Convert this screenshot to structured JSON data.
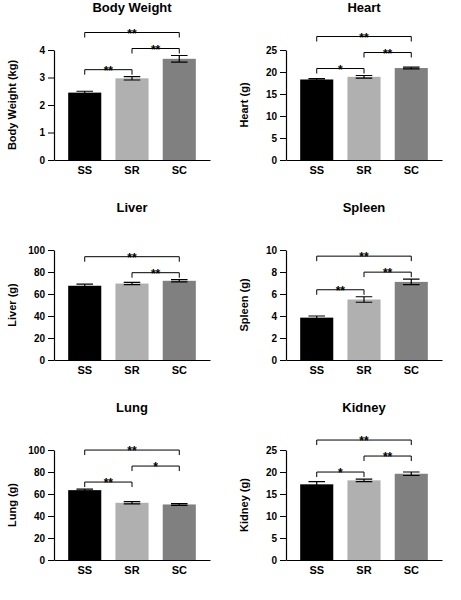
{
  "chart_data": [
    {
      "type": "bar",
      "title": "Body Weight",
      "y_label": "Body Weight (kg)",
      "categories": [
        "SS",
        "SR",
        "SC"
      ],
      "values": [
        2.45,
        2.97,
        3.68
      ],
      "errors": [
        0.05,
        0.06,
        0.12
      ],
      "colors": [
        "#000000",
        "#b0b0b0",
        "#808080"
      ],
      "ylim": [
        0,
        4
      ],
      "yticks": [
        0,
        1,
        2,
        3,
        4
      ],
      "annotations": [
        {
          "between": [
            "SS",
            "SR"
          ],
          "label": "**"
        },
        {
          "between": [
            "SR",
            "SC"
          ],
          "label": "**"
        },
        {
          "between": [
            "SS",
            "SC"
          ],
          "label": "**"
        }
      ]
    },
    {
      "type": "bar",
      "title": "Heart",
      "y_label": "Heart (g)",
      "categories": [
        "SS",
        "SR",
        "SC"
      ],
      "values": [
        18.3,
        18.9,
        20.9
      ],
      "errors": [
        0.2,
        0.3,
        0.2
      ],
      "colors": [
        "#000000",
        "#b0b0b0",
        "#808080"
      ],
      "ylim": [
        0,
        25
      ],
      "yticks": [
        0,
        5,
        10,
        15,
        20,
        25
      ],
      "annotations": [
        {
          "between": [
            "SS",
            "SR"
          ],
          "label": "*"
        },
        {
          "between": [
            "SR",
            "SC"
          ],
          "label": "**"
        },
        {
          "between": [
            "SS",
            "SC"
          ],
          "label": "**"
        }
      ]
    },
    {
      "type": "bar",
      "title": "Liver",
      "y_label": "Liver (g)",
      "categories": [
        "SS",
        "SR",
        "SC"
      ],
      "values": [
        67.5,
        69.5,
        72
      ],
      "errors": [
        1.5,
        1,
        1
      ],
      "colors": [
        "#000000",
        "#b0b0b0",
        "#808080"
      ],
      "ylim": [
        0,
        100
      ],
      "yticks": [
        0,
        20,
        40,
        60,
        80,
        100
      ],
      "annotations": [
        {
          "between": [
            "SR",
            "SC"
          ],
          "label": "**"
        },
        {
          "between": [
            "SS",
            "SC"
          ],
          "label": "**"
        }
      ]
    },
    {
      "type": "bar",
      "title": "Spleen",
      "y_label": "Spleen (g)",
      "categories": [
        "SS",
        "SR",
        "SC"
      ],
      "values": [
        3.85,
        5.5,
        7.1
      ],
      "errors": [
        0.15,
        0.25,
        0.25
      ],
      "colors": [
        "#000000",
        "#b0b0b0",
        "#808080"
      ],
      "ylim": [
        0,
        10
      ],
      "yticks": [
        0,
        2,
        4,
        6,
        8,
        10
      ],
      "annotations": [
        {
          "between": [
            "SS",
            "SR"
          ],
          "label": "**"
        },
        {
          "between": [
            "SR",
            "SC"
          ],
          "label": "**"
        },
        {
          "between": [
            "SS",
            "SC"
          ],
          "label": "**"
        }
      ]
    },
    {
      "type": "bar",
      "title": "Lung",
      "y_label": "Lung (g)",
      "categories": [
        "SS",
        "SR",
        "SC"
      ],
      "values": [
        63.5,
        52,
        50.5
      ],
      "errors": [
        1,
        1,
        0.8
      ],
      "colors": [
        "#000000",
        "#b0b0b0",
        "#808080"
      ],
      "ylim": [
        0,
        100
      ],
      "yticks": [
        0,
        20,
        40,
        60,
        80,
        100
      ],
      "annotations": [
        {
          "between": [
            "SS",
            "SR"
          ],
          "label": "**"
        },
        {
          "between": [
            "SR",
            "SC"
          ],
          "label": "*"
        },
        {
          "between": [
            "SS",
            "SC"
          ],
          "label": "**"
        }
      ]
    },
    {
      "type": "bar",
      "title": "Kidney",
      "y_label": "Kidney (g)",
      "categories": [
        "SS",
        "SR",
        "SC"
      ],
      "values": [
        17.2,
        18.1,
        19.6
      ],
      "errors": [
        0.6,
        0.3,
        0.4
      ],
      "colors": [
        "#000000",
        "#b0b0b0",
        "#808080"
      ],
      "ylim": [
        0,
        25
      ],
      "yticks": [
        0,
        5,
        10,
        15,
        20,
        25
      ],
      "annotations": [
        {
          "between": [
            "SS",
            "SR"
          ],
          "label": "*"
        },
        {
          "between": [
            "SR",
            "SC"
          ],
          "label": "**"
        },
        {
          "between": [
            "SS",
            "SC"
          ],
          "label": "**"
        }
      ]
    }
  ]
}
